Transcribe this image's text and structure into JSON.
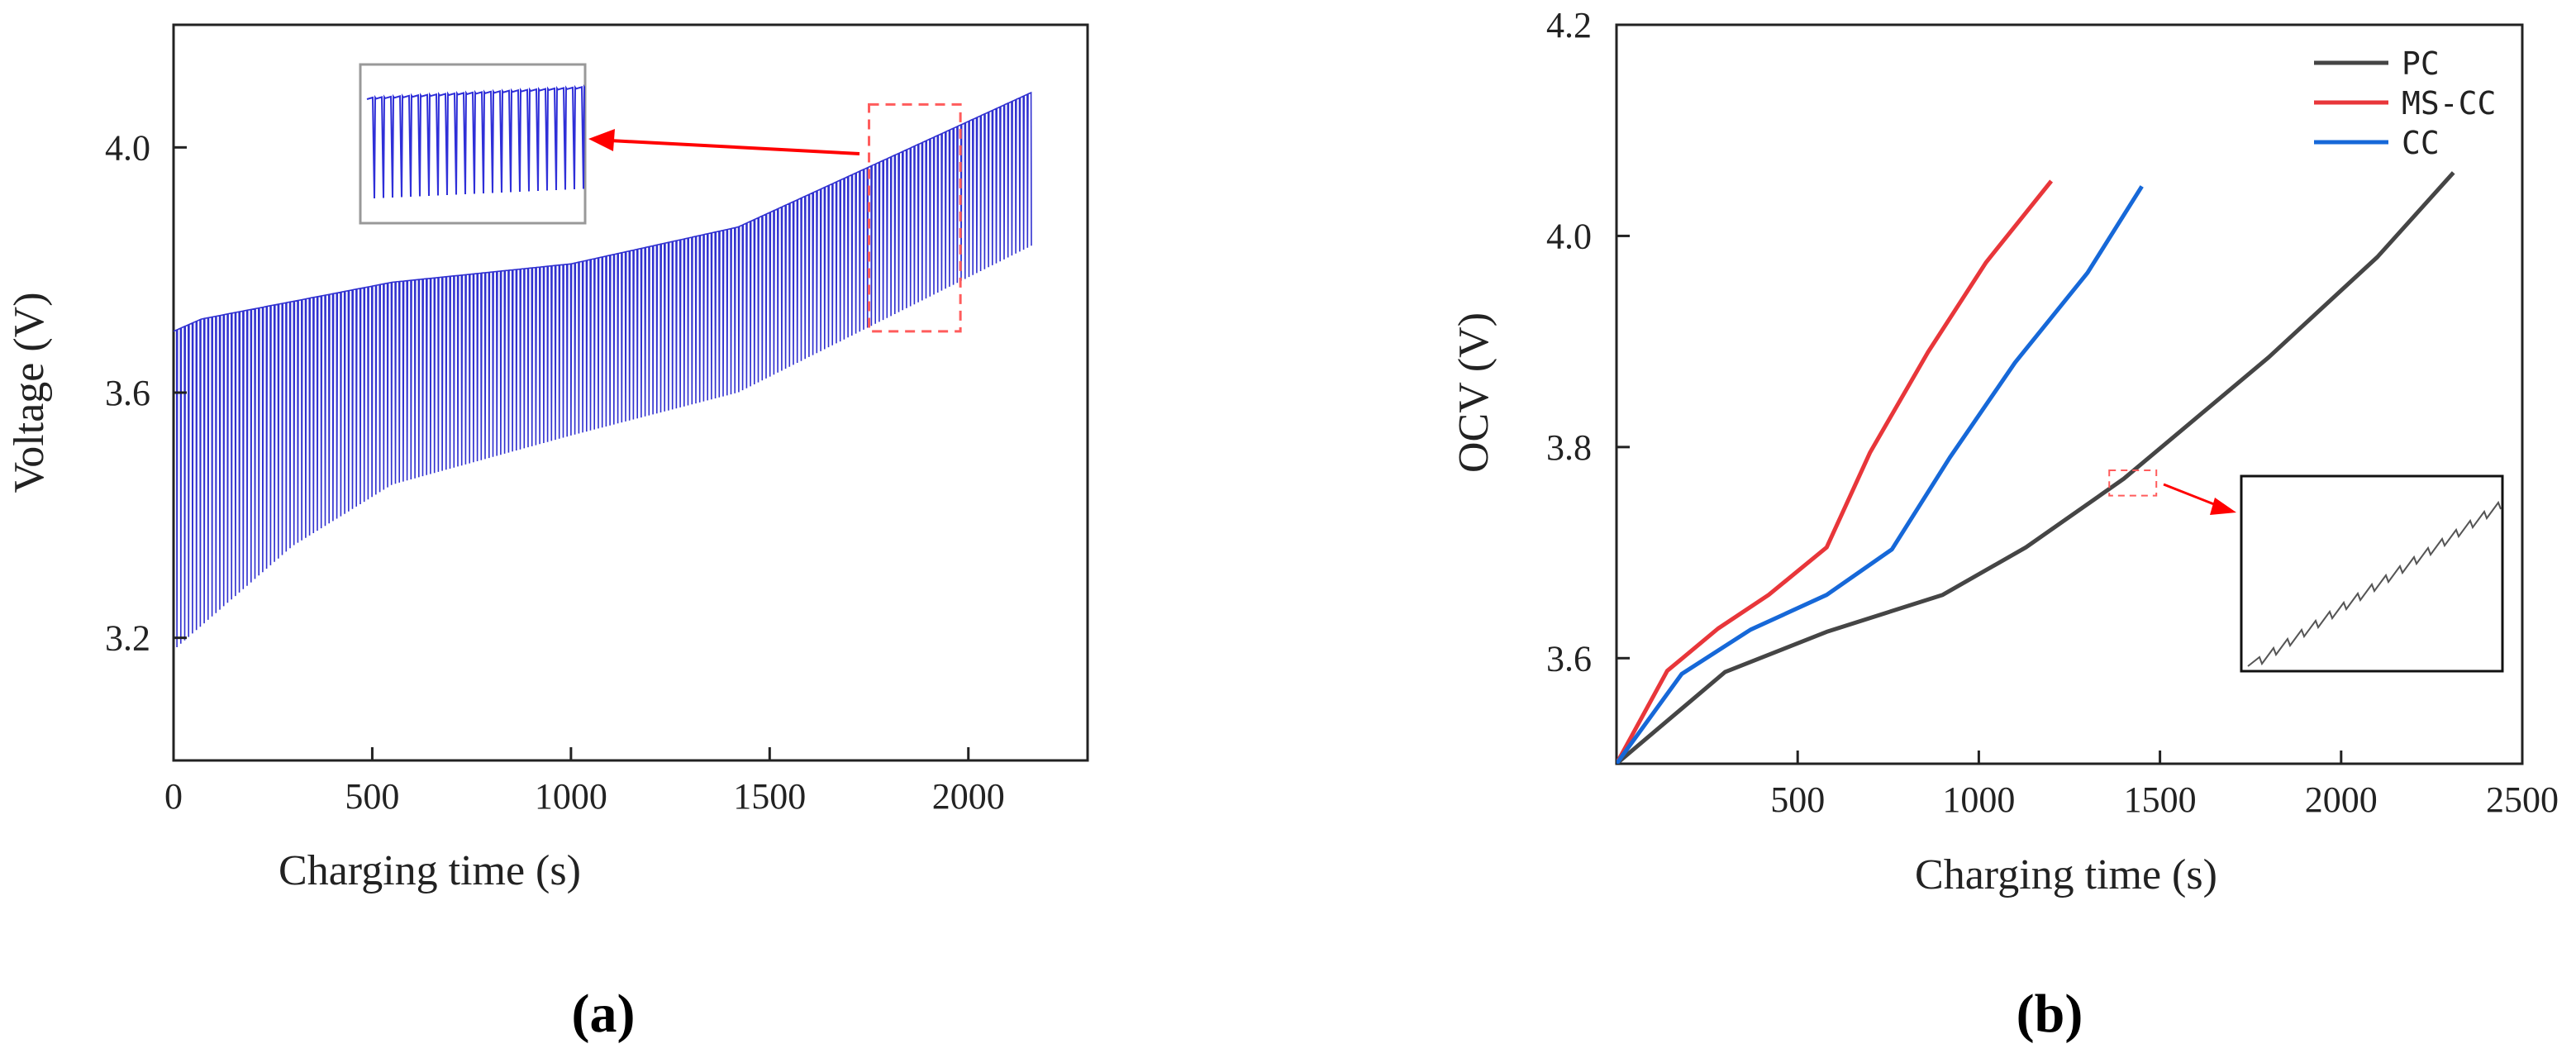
{
  "chart_data": [
    {
      "id": "a",
      "type": "line",
      "panel_label_open": "(",
      "panel_label_letter": "a",
      "panel_label_close": ")",
      "xlabel": "Charging time (s)",
      "ylabel": "Voltage (V)",
      "xlim": [
        0,
        2300
      ],
      "ylim": [
        3.0,
        4.2
      ],
      "xticks": [
        0,
        500,
        1000,
        1500,
        2000
      ],
      "xtick_labels": [
        "0",
        "500",
        "1000",
        "1500",
        "2000"
      ],
      "yticks": [
        3.2,
        3.6,
        4.0
      ],
      "ytick_labels": [
        "3.2",
        "3.6",
        "4.0"
      ],
      "series": [
        {
          "name": "Voltage",
          "color": "#3030d0",
          "kind": "pulse",
          "t_end": 2160,
          "pulses": 220,
          "upper": {
            "x": [
              0,
              70,
              550,
              1000,
              1420,
              2160
            ],
            "y": [
              3.7,
              3.72,
              3.78,
              3.81,
              3.87,
              4.09
            ]
          },
          "lower": {
            "x": [
              0,
              300,
              550,
              1000,
              1420,
              2160
            ],
            "y": [
              3.18,
              3.35,
              3.45,
              3.53,
              3.6,
              3.84
            ]
          }
        }
      ],
      "highlight_region": {
        "x": [
          1750,
          1980
        ],
        "y": [
          3.7,
          4.07
        ],
        "color": "#ff5c5c"
      },
      "arrow_color": "#ff0000",
      "inset_frame_color": "#999999"
    },
    {
      "id": "b",
      "type": "line",
      "panel_label_open": "(",
      "panel_label_letter": "b",
      "panel_label_close": ")",
      "xlabel": "Charging time (s)",
      "ylabel": "OCV (V)",
      "xlim": [
        0,
        2500
      ],
      "ylim": [
        3.5,
        4.2
      ],
      "xticks": [
        500,
        1000,
        1500,
        2000,
        2500
      ],
      "xtick_labels": [
        "500",
        "1000",
        "1500",
        "2000",
        "2500"
      ],
      "yticks": [
        3.6,
        3.8,
        4.0,
        4.2
      ],
      "ytick_labels": [
        "3.6",
        "3.8",
        "4.0",
        "4.2"
      ],
      "legend_position": "top-right",
      "series": [
        {
          "name": "PC",
          "color": "#454545",
          "x": [
            0,
            300,
            580,
            900,
            1130,
            1400,
            1800,
            2100,
            2310
          ],
          "y": [
            3.5,
            3.587,
            3.625,
            3.66,
            3.705,
            3.77,
            3.885,
            3.98,
            4.06
          ]
        },
        {
          "name": "MS-CC",
          "color": "#e8363a",
          "x": [
            0,
            140,
            280,
            420,
            580,
            700,
            860,
            1020,
            1200
          ],
          "y": [
            3.5,
            3.588,
            3.628,
            3.66,
            3.705,
            3.795,
            3.89,
            3.975,
            4.052
          ]
        },
        {
          "name": "CC",
          "color": "#1668d8",
          "x": [
            0,
            180,
            370,
            580,
            760,
            920,
            1100,
            1300,
            1450
          ],
          "y": [
            3.5,
            3.585,
            3.627,
            3.66,
            3.703,
            3.79,
            3.88,
            3.965,
            4.047
          ]
        }
      ],
      "highlight_region": {
        "x": [
          1360,
          1490
        ],
        "y": [
          3.754,
          3.778
        ],
        "color": "#ff5c5c"
      },
      "arrow_color": "#ff0000"
    }
  ]
}
